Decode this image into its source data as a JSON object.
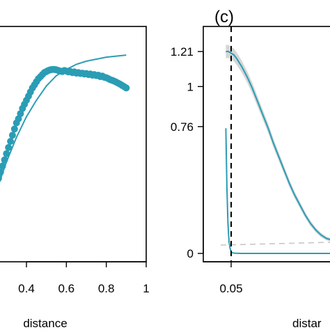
{
  "chart_data": [
    {
      "panel": "left",
      "type": "scatter",
      "xlabel": "distance",
      "ylabel": "",
      "xlim": [
        0.2,
        1.0
      ],
      "xticks": [
        "0.4",
        "0.6",
        "0.8",
        "1"
      ],
      "colors": {
        "series": "#2a9db5"
      },
      "series": [
        {
          "kind": "points",
          "x": [
            0.2,
            0.21,
            0.22,
            0.23,
            0.24,
            0.25,
            0.26,
            0.27,
            0.28,
            0.29,
            0.3,
            0.31,
            0.32,
            0.33,
            0.34,
            0.35,
            0.36,
            0.37,
            0.38,
            0.39,
            0.4,
            0.41,
            0.42,
            0.43,
            0.44,
            0.45,
            0.46,
            0.47,
            0.48,
            0.49,
            0.5,
            0.51,
            0.52,
            0.53,
            0.54,
            0.55,
            0.56,
            0.57,
            0.58,
            0.59,
            0.6,
            0.61,
            0.62,
            0.63,
            0.64,
            0.65,
            0.66,
            0.67,
            0.68,
            0.69,
            0.7,
            0.71,
            0.72,
            0.73,
            0.74,
            0.75,
            0.76,
            0.77,
            0.78,
            0.79,
            0.8,
            0.81,
            0.82,
            0.83,
            0.84,
            0.85,
            0.86,
            0.87,
            0.88,
            0.89,
            0.9
          ],
          "y": [
            0.25,
            0.27,
            0.3,
            0.33,
            0.36,
            0.39,
            0.42,
            0.45,
            0.48,
            0.51,
            0.54,
            0.57,
            0.6,
            0.63,
            0.66,
            0.69,
            0.71,
            0.735,
            0.76,
            0.78,
            0.8,
            0.82,
            0.84,
            0.86,
            0.875,
            0.89,
            0.905,
            0.915,
            0.925,
            0.935,
            0.94,
            0.945,
            0.948,
            0.95,
            0.95,
            0.948,
            0.945,
            0.942,
            0.94,
            0.945,
            0.942,
            0.938,
            0.94,
            0.935,
            0.938,
            0.932,
            0.935,
            0.93,
            0.932,
            0.928,
            0.93,
            0.925,
            0.928,
            0.922,
            0.925,
            0.92,
            0.922,
            0.915,
            0.918,
            0.912,
            0.91,
            0.905,
            0.9,
            0.897,
            0.893,
            0.888,
            0.883,
            0.878,
            0.872,
            0.866,
            0.86
          ]
        },
        {
          "kind": "line",
          "x": [
            0.2,
            0.25,
            0.3,
            0.35,
            0.4,
            0.45,
            0.5,
            0.55,
            0.6,
            0.65,
            0.7,
            0.75,
            0.8,
            0.85,
            0.9
          ],
          "y": [
            0.22,
            0.36,
            0.5,
            0.62,
            0.72,
            0.8,
            0.87,
            0.92,
            0.95,
            0.975,
            0.99,
            1.0,
            1.01,
            1.015,
            1.02
          ]
        }
      ]
    },
    {
      "panel": "right",
      "panel_label": "(c)",
      "type": "line",
      "xlabel": "distar",
      "ylabel": "",
      "ylim": [
        0,
        1.3
      ],
      "yticks": [
        "0",
        "0.76",
        "1",
        "1.21"
      ],
      "ytick_values": [
        0,
        0.76,
        1,
        1.21
      ],
      "xticks": [
        "0.05"
      ],
      "xtick_values": [
        0.05
      ],
      "xlim": [
        0.0,
        0.25
      ],
      "vline": 0.05,
      "colors": {
        "series": "#2a9db5",
        "band": "#d6d6d6",
        "ref": "#c8c8c8"
      },
      "series": [
        {
          "kind": "line",
          "x": [
            0.04,
            0.045,
            0.05,
            0.055,
            0.06,
            0.07,
            0.08,
            0.09,
            0.1,
            0.11,
            0.12,
            0.13,
            0.14,
            0.15,
            0.16,
            0.17,
            0.18,
            0.19,
            0.2,
            0.21,
            0.22,
            0.23,
            0.24,
            0.25
          ],
          "y": [
            1.21,
            1.21,
            1.2,
            1.19,
            1.17,
            1.12,
            1.06,
            0.99,
            0.91,
            0.83,
            0.75,
            0.66,
            0.58,
            0.5,
            0.42,
            0.35,
            0.29,
            0.23,
            0.18,
            0.14,
            0.11,
            0.09,
            0.08,
            0.07
          ]
        },
        {
          "kind": "line",
          "x": [
            0.04,
            0.042,
            0.044,
            0.046,
            0.048,
            0.05,
            0.052,
            0.055,
            0.06,
            0.07,
            0.1,
            0.15,
            0.2,
            0.25
          ],
          "y": [
            0.75,
            0.4,
            0.18,
            0.07,
            0.03,
            0.01,
            0.004,
            0.002,
            0.001,
            0.0,
            0.0,
            0.0,
            0.0,
            0.0
          ]
        },
        {
          "kind": "reference",
          "y": [
            0.04,
            0.07
          ]
        }
      ]
    }
  ]
}
